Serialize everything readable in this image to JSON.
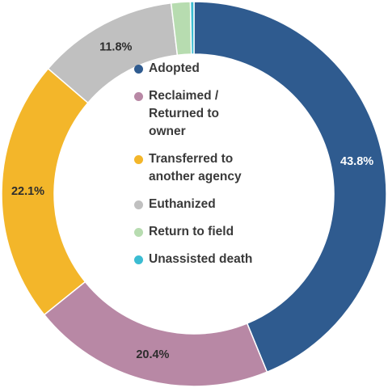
{
  "chart_data": {
    "type": "pie",
    "variant": "donut",
    "title": "",
    "categories": [
      "Adopted",
      "Reclaimed /\nReturned to\nowner",
      "Transferred to\nanother agency",
      "Euthanized",
      "Return to field",
      "Unassisted death"
    ],
    "values": [
      43.8,
      20.4,
      22.1,
      11.8,
      1.6,
      0.3
    ],
    "value_labels": [
      "43.8%",
      "20.4%",
      "22.1%",
      "11.8%",
      "",
      ""
    ],
    "colors": [
      "#2f5b8f",
      "#b888a5",
      "#f3b62a",
      "#c0c0c0",
      "#b7dcb0",
      "#3bbcd2"
    ],
    "label_colors": [
      "#ffffff",
      "#2d2d2d",
      "#2d2d2d",
      "#2d2d2d",
      "#2d2d2d",
      "#2d2d2d"
    ],
    "legend_position": "center"
  },
  "legend": {
    "items": [
      {
        "label": "Adopted",
        "color": "#2f5b8f"
      },
      {
        "label": "Reclaimed /\nReturned to\nowner",
        "color": "#b888a5"
      },
      {
        "label": "Transferred to\nanother agency",
        "color": "#f3b62a"
      },
      {
        "label": "Euthanized",
        "color": "#c0c0c0"
      },
      {
        "label": "Return to field",
        "color": "#b7dcb0"
      },
      {
        "label": "Unassisted death",
        "color": "#3bbcd2"
      }
    ]
  }
}
